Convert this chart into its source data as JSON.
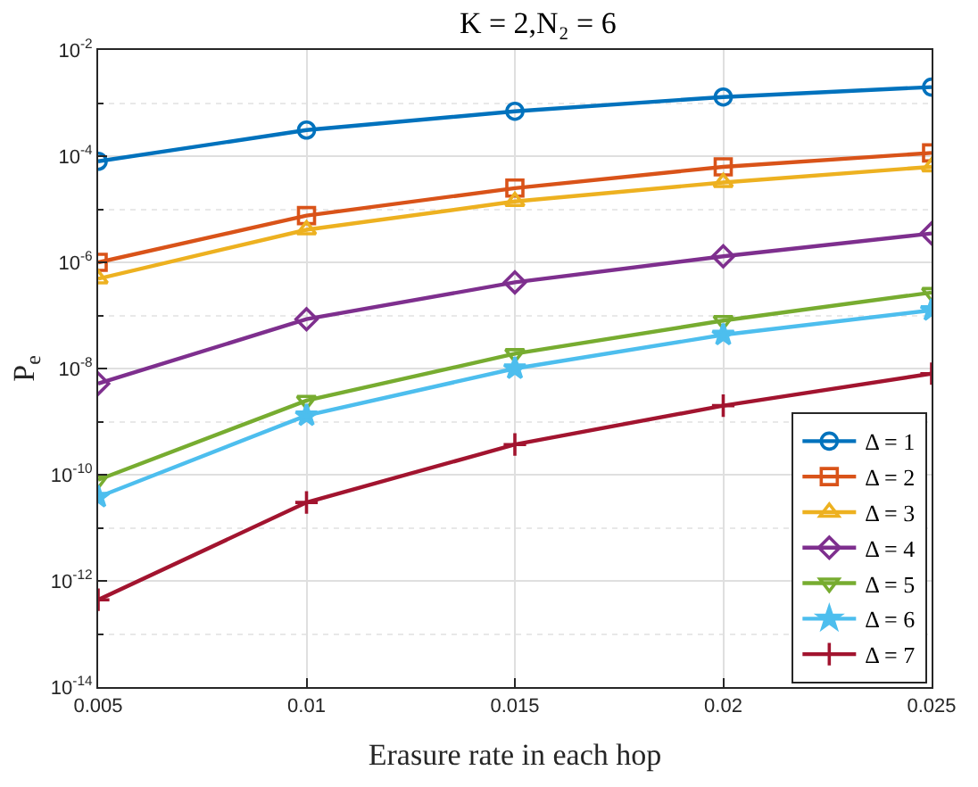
{
  "chart_data": {
    "type": "line",
    "title": "K = 2,N₂ = 6",
    "xlabel": "Erasure rate in each hop",
    "ylabel": "P$_{e}$",
    "x": [
      0.005,
      0.01,
      0.015,
      0.02,
      0.025
    ],
    "series": [
      {
        "name": "Δ = 1",
        "color": "#0072bd",
        "marker": "circle",
        "values": [
          8e-05,
          0.00031,
          0.0007,
          0.0013,
          0.002
        ]
      },
      {
        "name": "Δ = 2",
        "color": "#d95319",
        "marker": "square",
        "values": [
          1e-06,
          7.6e-06,
          2.5e-05,
          6.3e-05,
          0.000115
        ]
      },
      {
        "name": "Δ = 3",
        "color": "#edb120",
        "marker": "triangle",
        "values": [
          4.9e-07,
          4.1e-06,
          1.4e-05,
          3.2e-05,
          6.3e-05
        ]
      },
      {
        "name": "Δ = 4",
        "color": "#7e2f8e",
        "marker": "diamond",
        "values": [
          5.2e-09,
          8.5e-08,
          4.2e-07,
          1.3e-06,
          3.5e-06
        ]
      },
      {
        "name": "Δ = 5",
        "color": "#77ac30",
        "marker": "triangle-down",
        "values": [
          8e-11,
          2.5e-09,
          1.9e-08,
          8e-08,
          2.7e-07
        ]
      },
      {
        "name": "Δ = 6",
        "color": "#4dbeee",
        "marker": "star",
        "values": [
          3.8e-11,
          1.3e-09,
          1e-08,
          4.3e-08,
          1.25e-07
        ]
      },
      {
        "name": "Δ = 7",
        "color": "#a2142f",
        "marker": "cross",
        "values": [
          4.4e-13,
          3e-11,
          3.7e-10,
          2e-09,
          8e-09
        ]
      }
    ],
    "xlim": [
      0.005,
      0.025
    ],
    "xticks": [
      0.005,
      0.01,
      0.015,
      0.02,
      0.025
    ],
    "ylim": [
      1e-14,
      0.01
    ],
    "yticks": [
      {
        "value": 1e-14,
        "label": "10$^{-14}$"
      },
      {
        "value": 1e-12,
        "label": "10$^{-12}$"
      },
      {
        "value": 1e-10,
        "label": "10$^{-10}$"
      },
      {
        "value": 1e-08,
        "label": "10$^{-8}$"
      },
      {
        "value": 1e-06,
        "label": "10$^{-6}$"
      },
      {
        "value": 0.0001,
        "label": "10$^{-4}$"
      },
      {
        "value": 0.01,
        "label": "10$^{-2}$"
      }
    ],
    "log": "y",
    "grid": true,
    "legend": "bottom right",
    "line_style": "solid"
  }
}
